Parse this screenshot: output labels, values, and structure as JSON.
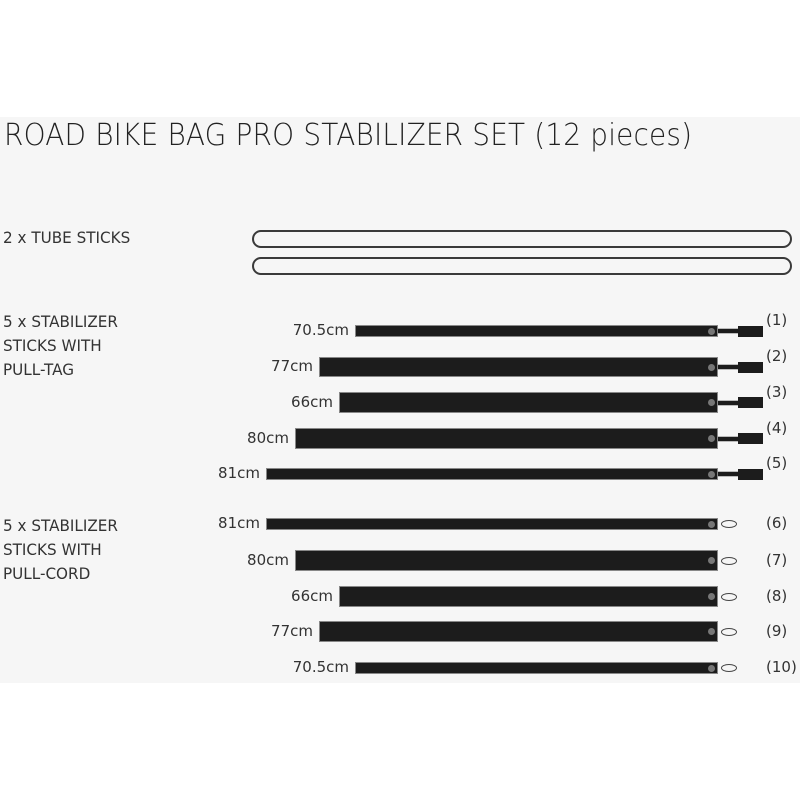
{
  "title": "ROAD BIKE BAG PRO STABILIZER SET (12 pieces)",
  "groups": [
    {
      "label": "2 x TUBE STICKS"
    },
    {
      "label_lines": [
        "5 x STABILIZER",
        "STICKS WITH",
        "PULL-TAG"
      ]
    },
    {
      "label_lines": [
        "5 x STABILIZER",
        "STICKS WITH",
        "PULL-CORD"
      ]
    }
  ],
  "tubes": 2,
  "pull_tag_sticks": [
    {
      "length": "70.5cm",
      "number": "(1)"
    },
    {
      "length": "77cm",
      "number": "(2)"
    },
    {
      "length": "66cm",
      "number": "(3)"
    },
    {
      "length": "80cm",
      "number": "(4)"
    },
    {
      "length": "81cm",
      "number": "(5)"
    }
  ],
  "pull_cord_sticks": [
    {
      "length": "81cm",
      "number": "(6)"
    },
    {
      "length": "80cm",
      "number": "(7)"
    },
    {
      "length": "66cm",
      "number": "(8)"
    },
    {
      "length": "77cm",
      "number": "(9)"
    },
    {
      "length": "70.5cm",
      "number": "(10)"
    }
  ],
  "colors": {
    "stick": "#1c1c1c",
    "background": "#f6f6f6"
  }
}
